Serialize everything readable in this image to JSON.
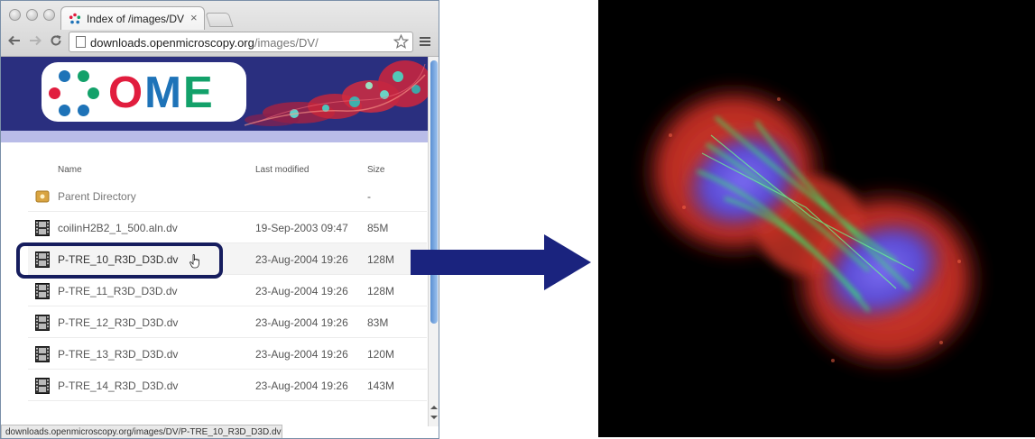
{
  "browser": {
    "tab_title": "Index of /images/DV",
    "tab_close": "×",
    "url_host": "downloads.openmicroscopy.org",
    "url_path": "/images/DV/",
    "status_url": "downloads.openmicroscopy.org/images/DV/P-TRE_10_R3D_D3D.dv"
  },
  "icons": {
    "back": "back-arrow-icon",
    "forward": "forward-arrow-icon",
    "reload": "reload-icon",
    "star": "star-icon",
    "menu": "menu-icon",
    "folder": "folder-icon",
    "film": "film-icon"
  },
  "logo": {
    "text_o": "O",
    "text_m": "M",
    "text_e": "E"
  },
  "listing": {
    "headers": {
      "name": "Name",
      "modified": "Last modified",
      "size": "Size"
    },
    "parent": {
      "name": "Parent Directory",
      "size": "-"
    },
    "rows": [
      {
        "name": "coilinH2B2_1_500.aln.dv",
        "modified": "19-Sep-2003 09:47",
        "size": "85M"
      },
      {
        "name": "P-TRE_10_R3D_D3D.dv",
        "modified": "23-Aug-2004 19:26",
        "size": "128M"
      },
      {
        "name": "P-TRE_11_R3D_D3D.dv",
        "modified": "23-Aug-2004 19:26",
        "size": "128M"
      },
      {
        "name": "P-TRE_12_R3D_D3D.dv",
        "modified": "23-Aug-2004 19:26",
        "size": "83M"
      },
      {
        "name": "P-TRE_13_R3D_D3D.dv",
        "modified": "23-Aug-2004 19:26",
        "size": "120M"
      },
      {
        "name": "P-TRE_14_R3D_D3D.dv",
        "modified": "23-Aug-2004 19:26",
        "size": "143M"
      }
    ]
  },
  "colors": {
    "ome_red": "#e11d3e",
    "ome_blue": "#1e73b8",
    "ome_green": "#13a16a",
    "banner_navy": "#2a2f7f",
    "arrow_navy": "#1a237e"
  }
}
